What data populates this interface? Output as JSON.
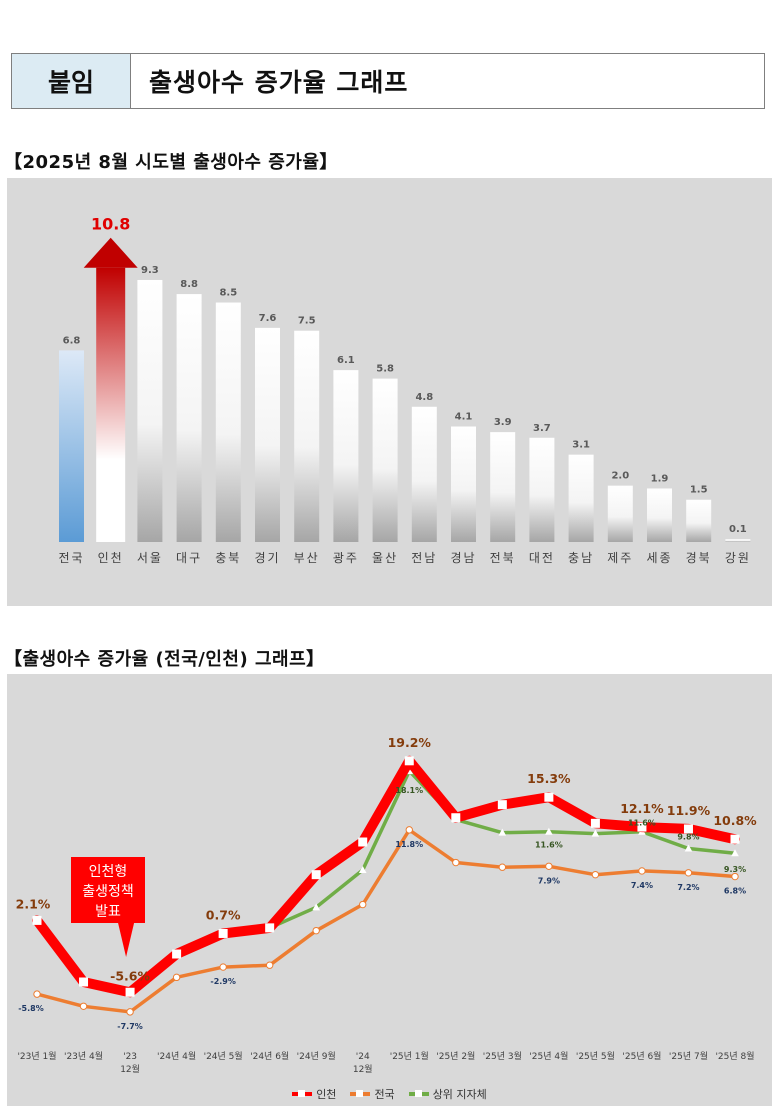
{
  "header": {
    "tag": "붙임",
    "title": "출생아수 증가율 그래프"
  },
  "chart_data": [
    {
      "type": "bar",
      "heading": "【2025년 8월 시도별 출생아수 증가율】",
      "categories": [
        "전국",
        "인천",
        "서울",
        "대구",
        "충북",
        "경기",
        "부산",
        "광주",
        "울산",
        "전남",
        "경남",
        "전북",
        "대전",
        "충남",
        "제주",
        "세종",
        "경북",
        "강원"
      ],
      "values": [
        6.8,
        10.8,
        9.3,
        8.8,
        8.5,
        7.6,
        7.5,
        6.1,
        5.8,
        4.8,
        4.1,
        3.9,
        3.7,
        3.1,
        2.0,
        1.9,
        1.5,
        0.1
      ],
      "labels": [
        "6.8",
        "10.8",
        "9.3",
        "8.8",
        "8.5",
        "7.6",
        "7.5",
        "6.1",
        "5.8",
        "4.8",
        "4.1",
        "3.9",
        "3.7",
        "3.1",
        "2.0",
        "1.9",
        "1.5",
        "0.1"
      ],
      "highlight_index": 1,
      "national_index": 0,
      "colors": {
        "national": "#5b9bd5",
        "highlight": "#c00000",
        "default": "#ffffff",
        "highlight_label": "#e00000"
      },
      "ylim": [
        0,
        11.5
      ]
    },
    {
      "type": "line",
      "heading": "【출생아수 증가율 (전국/인천) 그래프】",
      "categories": [
        "'23년 1월",
        "'23년 4월",
        "'23 12월",
        "'24년 4월",
        "'24년 5월",
        "'24년 6월",
        "'24년 9월",
        "'24 12월",
        "'25년 1월",
        "'25년 2월",
        "'25년 3월",
        "'25년 4월",
        "'25년 5월",
        "'25년 6월",
        "'25년 7월",
        "'25년 8월"
      ],
      "category_lines": [
        [
          "'23년 1월"
        ],
        [
          "'23년 4월"
        ],
        [
          "'23",
          "12월"
        ],
        [
          "'24년 4월"
        ],
        [
          "'24년 5월"
        ],
        [
          "'24년 6월"
        ],
        [
          "'24년 9월"
        ],
        [
          "'24",
          "12월"
        ],
        [
          "'25년 1월"
        ],
        [
          "'25년 2월"
        ],
        [
          "'25년 3월"
        ],
        [
          "'25년 4월"
        ],
        [
          "'25년 5월"
        ],
        [
          "'25년 6월"
        ],
        [
          "'25년 7월"
        ],
        [
          "'25년 8월"
        ]
      ],
      "ylim": [
        -9,
        21
      ],
      "series": [
        {
          "name": "인천",
          "color": "#ff0000",
          "values": [
            2.1,
            -4.5,
            -5.6,
            -1.5,
            0.7,
            1.3,
            7.0,
            10.5,
            19.2,
            13.1,
            14.5,
            15.3,
            12.5,
            12.1,
            11.9,
            10.8
          ],
          "labels": [
            "2.1%",
            null,
            "-5.6%",
            null,
            "0.7%",
            null,
            null,
            null,
            "19.2%",
            null,
            null,
            "15.3%",
            null,
            "12.1%",
            "11.9%",
            "10.8%"
          ]
        },
        {
          "name": "전국",
          "color": "#ed7d31",
          "values": [
            -5.8,
            -7.1,
            -7.7,
            -4.0,
            -2.9,
            -2.7,
            1.0,
            3.8,
            11.8,
            8.3,
            7.8,
            7.9,
            7.0,
            7.4,
            7.2,
            6.8
          ],
          "labels": [
            "-5.8%",
            null,
            "-7.7%",
            null,
            "-2.9%",
            null,
            null,
            null,
            "11.8%",
            null,
            null,
            "7.9%",
            null,
            "7.4%",
            "7.2%",
            "6.8%"
          ]
        },
        {
          "name": "상위 지자체",
          "color": "#70ad47",
          "values": [
            null,
            null,
            null,
            null,
            null,
            1.3,
            3.5,
            7.5,
            18.1,
            12.9,
            11.5,
            11.6,
            11.4,
            11.6,
            9.8,
            9.3
          ],
          "labels": [
            null,
            null,
            null,
            null,
            null,
            null,
            null,
            null,
            "18.1%",
            null,
            null,
            "11.6%",
            null,
            "11.6%",
            "9.8%",
            "9.3%"
          ]
        }
      ],
      "annotation": {
        "lines": [
          "인천형",
          "출생정책",
          "발표"
        ],
        "color": "#ff0000"
      },
      "legend_position": "bottom"
    }
  ]
}
